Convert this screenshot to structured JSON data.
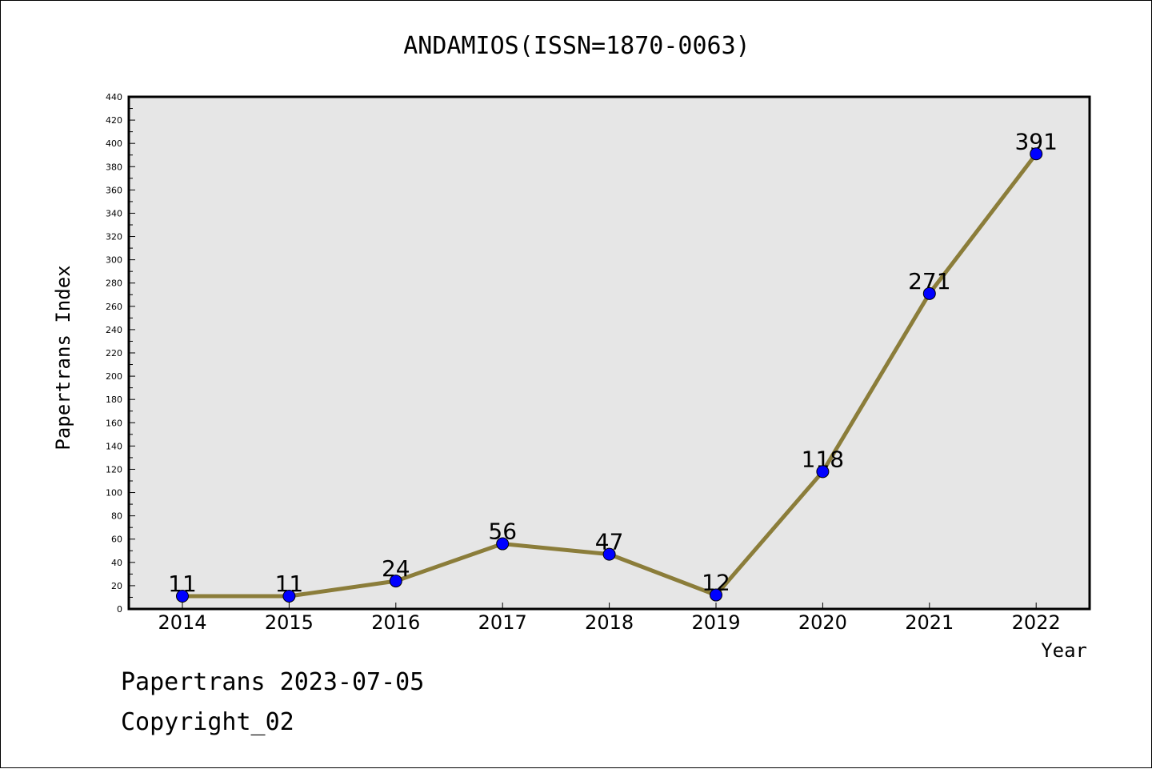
{
  "chart_data": {
    "type": "line",
    "title": "ANDAMIOS(ISSN=1870-0063)",
    "xlabel": "Year",
    "ylabel": "Papertrans Index",
    "categories": [
      "2014",
      "2015",
      "2016",
      "2017",
      "2018",
      "2019",
      "2020",
      "2021",
      "2022"
    ],
    "series": [
      {
        "values": [
          11,
          11,
          24,
          56,
          47,
          12,
          118,
          271,
          391
        ],
        "data_labels": [
          "11",
          "11",
          "24",
          "56",
          "47",
          "12",
          "118",
          "271",
          "391"
        ],
        "line_color": "#8b7d3a",
        "marker_color": "#0000ff"
      }
    ],
    "ylim": [
      0,
      440
    ],
    "y_tick_step": 20,
    "y_tick_labels": [
      "0",
      "20",
      "40",
      "60",
      "80",
      "100",
      "120",
      "140",
      "160",
      "180",
      "200",
      "220",
      "240",
      "260",
      "280",
      "300",
      "320",
      "340",
      "360",
      "380",
      "400",
      "420",
      "440"
    ],
    "grid": false,
    "plot_background": "#e6e6e6"
  },
  "footer": {
    "line1": "Papertrans 2023-07-05",
    "line2": "Copyright_02"
  }
}
